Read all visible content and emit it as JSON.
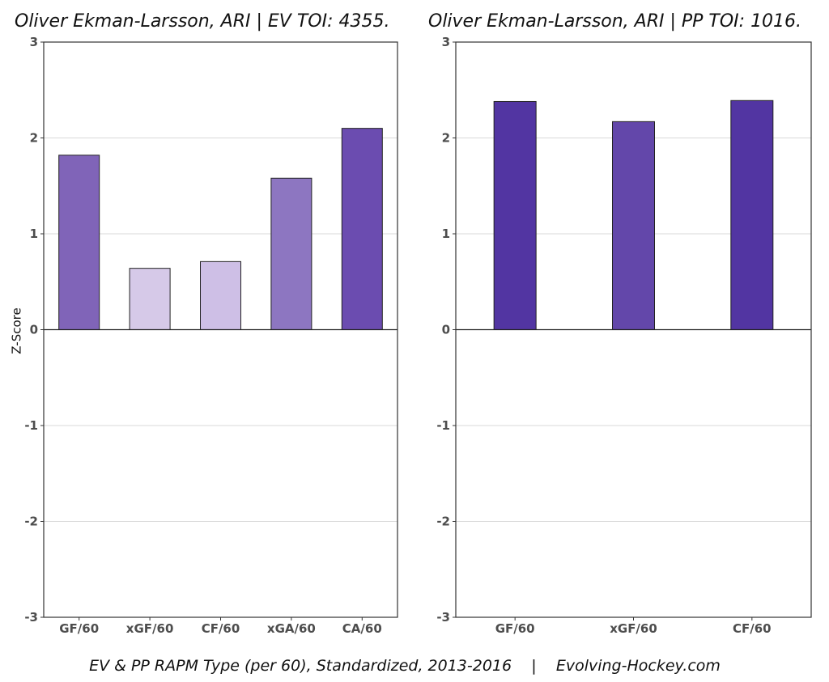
{
  "titles": {
    "left": "Oliver Ekman-Larsson, ARI  |  EV TOI: 4355.",
    "right": "Oliver Ekman-Larsson, ARI  |  PP TOI: 1016."
  },
  "ylabel": "Z-Score",
  "caption": "EV & PP RAPM Type (per 60), Standardized, 2013-2016    |    Evolving-Hockey.com",
  "chart_data": [
    {
      "type": "bar",
      "title": "Oliver Ekman-Larsson, ARI  |  EV TOI: 4355.",
      "categories": [
        "GF/60",
        "xGF/60",
        "CF/60",
        "xGA/60",
        "CA/60"
      ],
      "values": [
        1.82,
        0.64,
        0.71,
        1.58,
        2.1
      ],
      "colors": [
        "#8064b8",
        "#d6c9e8",
        "#cebfe6",
        "#8d76c1",
        "#6b4cb0"
      ],
      "ylabel": "Z-Score",
      "ylim": [
        -3,
        3
      ],
      "yticks": [
        -3,
        -2,
        -1,
        0,
        1,
        2,
        3
      ],
      "grid": true
    },
    {
      "type": "bar",
      "title": "Oliver Ekman-Larsson, ARI  |  PP TOI: 1016.",
      "categories": [
        "GF/60",
        "xGF/60",
        "CF/60"
      ],
      "values": [
        2.38,
        2.17,
        2.39
      ],
      "colors": [
        "#5235a2",
        "#6347aa",
        "#5235a2"
      ],
      "ylim": [
        -3,
        3
      ],
      "yticks": [
        -3,
        -2,
        -1,
        0,
        1,
        2,
        3
      ],
      "grid": true
    }
  ]
}
